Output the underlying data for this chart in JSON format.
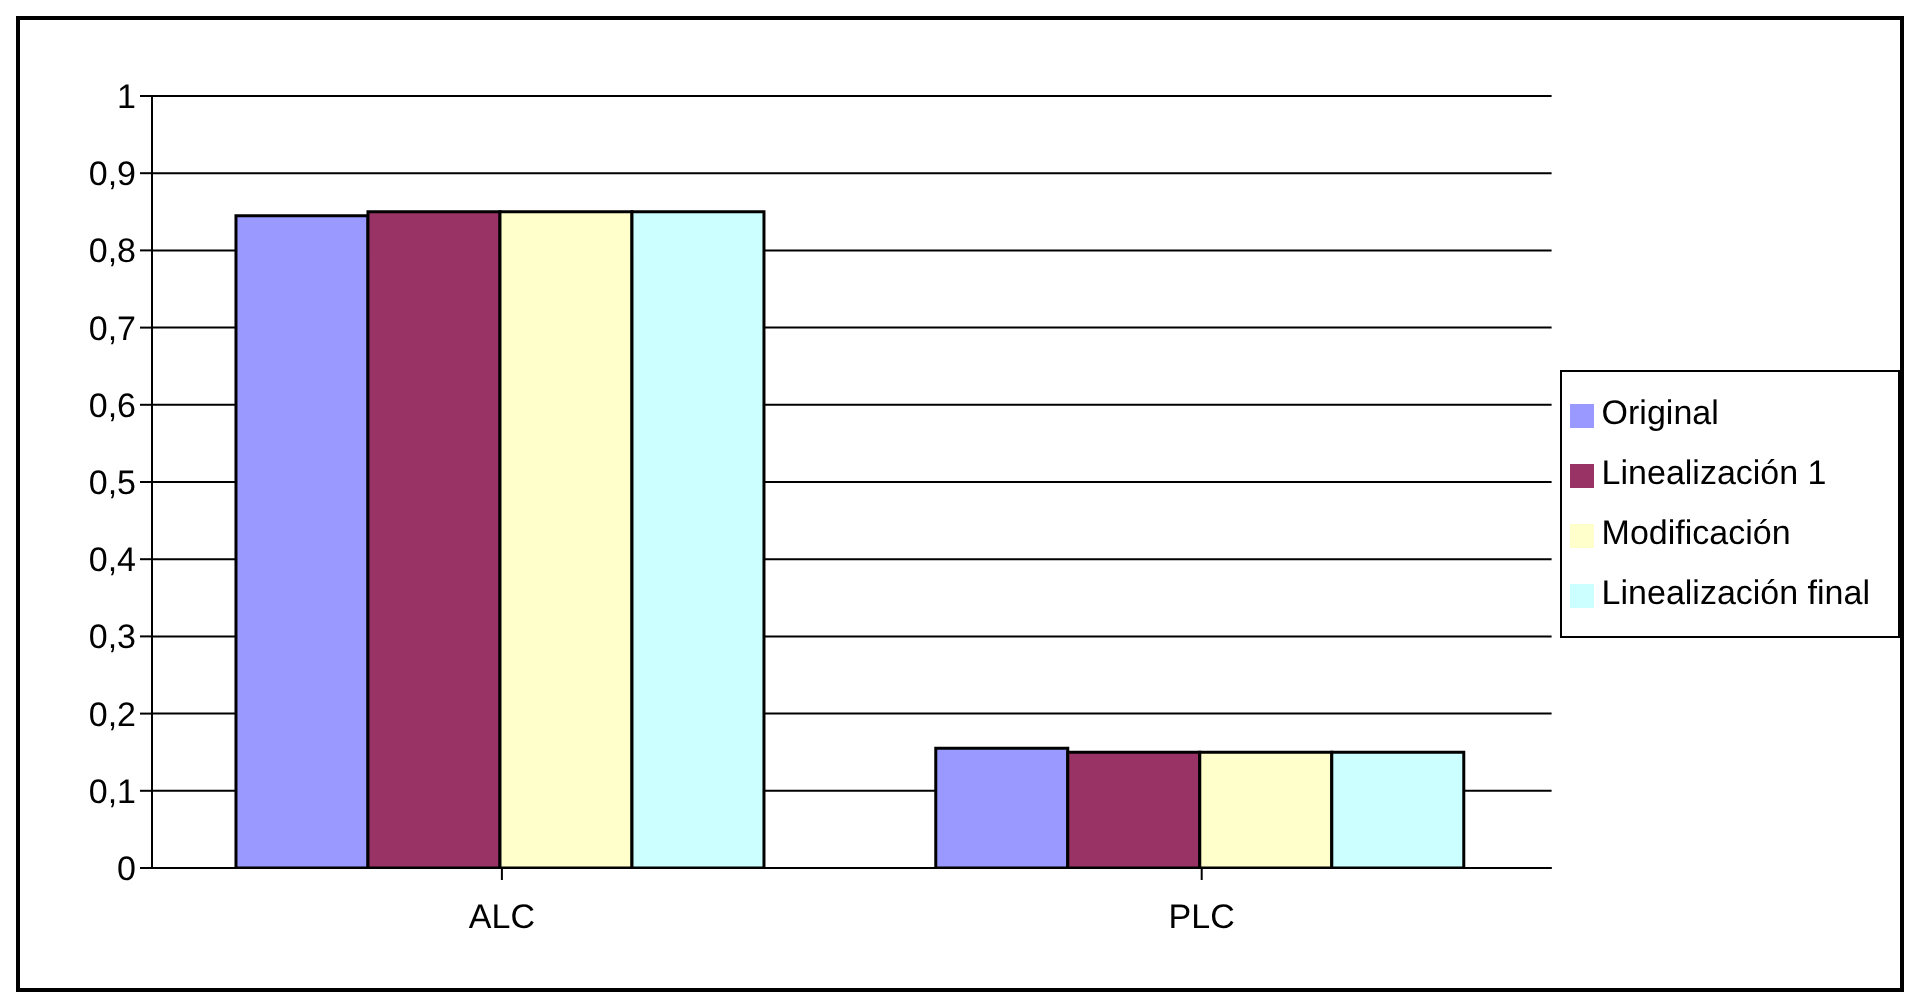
{
  "chart_data": {
    "type": "bar",
    "categories": [
      "ALC",
      "PLC"
    ],
    "series": [
      {
        "name": "Original",
        "color": "#9999ff",
        "values": [
          0.845,
          0.155
        ]
      },
      {
        "name": "Linealización 1",
        "color": "#993366",
        "values": [
          0.85,
          0.15
        ]
      },
      {
        "name": "Modificación",
        "color": "#ffffcc",
        "values": [
          0.85,
          0.15
        ]
      },
      {
        "name": "Linealización final",
        "color": "#ccffff",
        "values": [
          0.85,
          0.15
        ]
      }
    ],
    "ylim": [
      0,
      1
    ],
    "yticks": [
      {
        "value": 0,
        "label": "0"
      },
      {
        "value": 0.1,
        "label": "0,1"
      },
      {
        "value": 0.2,
        "label": "0,2"
      },
      {
        "value": 0.3,
        "label": "0,3"
      },
      {
        "value": 0.4,
        "label": "0,4"
      },
      {
        "value": 0.5,
        "label": "0,5"
      },
      {
        "value": 0.6,
        "label": "0,6"
      },
      {
        "value": 0.7,
        "label": "0,7"
      },
      {
        "value": 0.8,
        "label": "0,8"
      },
      {
        "value": 0.9,
        "label": "0,9"
      },
      {
        "value": 1,
        "label": "1"
      }
    ],
    "grid": "y",
    "legend": "right"
  }
}
